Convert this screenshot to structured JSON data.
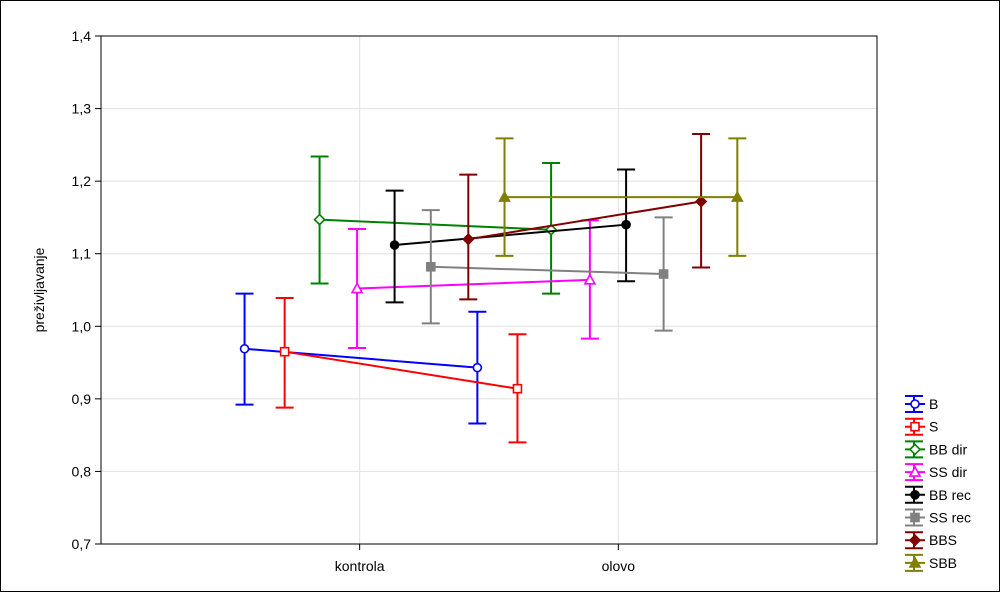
{
  "chart_data": {
    "type": "line",
    "title": "",
    "xlabel": "",
    "ylabel": "preživljavanje",
    "categories": [
      "kontrola",
      "olovo"
    ],
    "ylim": [
      0.7,
      1.4
    ],
    "yticks": [
      "0,7",
      "0,8",
      "0,9",
      "1,0",
      "1,1",
      "1,2",
      "1,3",
      "1,4"
    ],
    "grid": true,
    "legend_position": "bottom-right",
    "error_bars": true,
    "series": [
      {
        "name": "B",
        "color": "#0000ff",
        "marker": "circle-open",
        "points": [
          {
            "x": 0.555,
            "y": 0.969,
            "lo": 0.892,
            "hi": 1.045
          },
          {
            "x": 1.455,
            "y": 0.943,
            "lo": 0.866,
            "hi": 1.02
          }
        ]
      },
      {
        "name": "S",
        "color": "#ff0000",
        "marker": "square-open",
        "points": [
          {
            "x": 0.71,
            "y": 0.965,
            "lo": 0.888,
            "hi": 1.039
          },
          {
            "x": 1.61,
            "y": 0.914,
            "lo": 0.84,
            "hi": 0.989
          }
        ]
      },
      {
        "name": "BB dir",
        "color": "#008000",
        "marker": "diamond-open",
        "points": [
          {
            "x": 0.845,
            "y": 1.147,
            "lo": 1.059,
            "hi": 1.234
          },
          {
            "x": 1.74,
            "y": 1.133,
            "lo": 1.045,
            "hi": 1.225
          }
        ]
      },
      {
        "name": "SS dir",
        "color": "#ff00ff",
        "marker": "triangle-open",
        "points": [
          {
            "x": 0.99,
            "y": 1.052,
            "lo": 0.97,
            "hi": 1.134
          },
          {
            "x": 1.89,
            "y": 1.064,
            "lo": 0.983,
            "hi": 1.146
          }
        ]
      },
      {
        "name": "BB rec",
        "color": "#000000",
        "marker": "circle",
        "points": [
          {
            "x": 1.135,
            "y": 1.112,
            "lo": 1.033,
            "hi": 1.187
          },
          {
            "x": 2.03,
            "y": 1.14,
            "lo": 1.062,
            "hi": 1.216
          }
        ]
      },
      {
        "name": "SS rec",
        "color": "#808080",
        "marker": "square",
        "points": [
          {
            "x": 1.275,
            "y": 1.082,
            "lo": 1.004,
            "hi": 1.16
          },
          {
            "x": 2.175,
            "y": 1.072,
            "lo": 0.994,
            "hi": 1.15
          }
        ]
      },
      {
        "name": "BBS",
        "color": "#800000",
        "marker": "diamond",
        "points": [
          {
            "x": 1.42,
            "y": 1.12,
            "lo": 1.037,
            "hi": 1.209
          },
          {
            "x": 2.32,
            "y": 1.172,
            "lo": 1.081,
            "hi": 1.265
          }
        ]
      },
      {
        "name": "SBB",
        "color": "#808000",
        "marker": "triangle",
        "points": [
          {
            "x": 1.56,
            "y": 1.178,
            "lo": 1.097,
            "hi": 1.259
          },
          {
            "x": 2.46,
            "y": 1.178,
            "lo": 1.097,
            "hi": 1.259
          }
        ]
      }
    ]
  }
}
